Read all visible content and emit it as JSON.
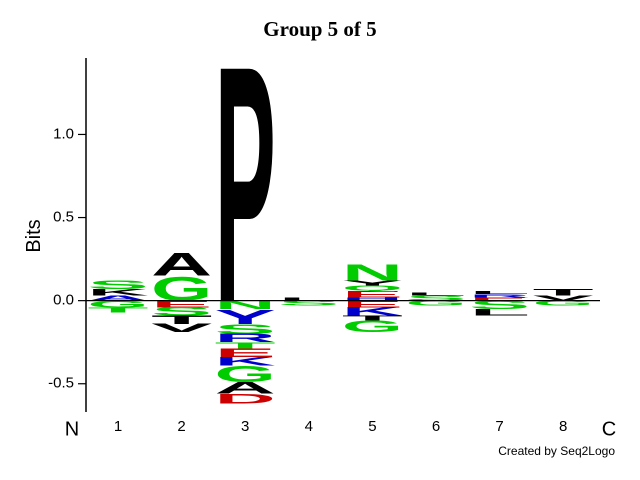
{
  "chart_data": {
    "type": "logo",
    "title": "Group 5 of 5",
    "ylabel": "Bits",
    "categories": [
      "1",
      "2",
      "3",
      "4",
      "5",
      "6",
      "7",
      "8"
    ],
    "start_label": "N",
    "end_label": "C",
    "credit": "Created by Seq2Logo",
    "ylim": [
      -0.67,
      1.46
    ],
    "yticks": [
      {
        "value": -0.5,
        "label": "-0.5"
      },
      {
        "value": 0,
        "label": "0.0"
      },
      {
        "value": 0.5,
        "label": "0.5"
      },
      {
        "value": 1,
        "label": "1.0"
      }
    ],
    "positions": [
      {
        "above": [
          {
            "letter": "A",
            "value": 0.03,
            "color": "#0000cc"
          },
          {
            "letter": "K",
            "value": 0.04,
            "color": "#000000"
          },
          {
            "letter": "S",
            "value": 0.05,
            "color": "#00cc00"
          }
        ],
        "below": [
          {
            "letter": "G",
            "value": -0.04,
            "color": "#00cc00"
          },
          {
            "letter": "T",
            "value": -0.03,
            "color": "#00cc00"
          }
        ]
      },
      {
        "above": [
          {
            "letter": "G",
            "value": 0.15,
            "color": "#00cc00"
          },
          {
            "letter": "A",
            "value": 0.14,
            "color": "#000000"
          }
        ],
        "below": [
          {
            "letter": "E",
            "value": -0.04,
            "color": "#cc0000"
          },
          {
            "letter": "S",
            "value": -0.05,
            "color": "#00cc00"
          },
          {
            "letter": "T",
            "value": -0.05,
            "color": "#000000"
          },
          {
            "letter": "V",
            "value": -0.05,
            "color": "#000000"
          }
        ]
      },
      {
        "above": [
          {
            "letter": "P",
            "value": 1.46,
            "color": "#000000"
          }
        ],
        "below": [
          {
            "letter": "N",
            "value": -0.05,
            "color": "#00cc00"
          },
          {
            "letter": "Y",
            "value": -0.09,
            "color": "#0000cc"
          },
          {
            "letter": "S",
            "value": -0.06,
            "color": "#00cc00"
          },
          {
            "letter": "R",
            "value": -0.05,
            "color": "#0000cc"
          },
          {
            "letter": "T",
            "value": -0.04,
            "color": "#00cc00"
          },
          {
            "letter": "E",
            "value": -0.05,
            "color": "#cc0000"
          },
          {
            "letter": "K",
            "value": -0.05,
            "color": "#0000cc"
          },
          {
            "letter": "G",
            "value": -0.1,
            "color": "#00cc00"
          },
          {
            "letter": "A",
            "value": -0.07,
            "color": "#000000"
          },
          {
            "letter": "D",
            "value": -0.06,
            "color": "#cc0000"
          }
        ]
      },
      {
        "above": [
          {
            "letter": "L",
            "value": 0.02,
            "color": "#000000"
          }
        ],
        "below": [
          {
            "letter": "S",
            "value": -0.03,
            "color": "#00cc00"
          }
        ]
      },
      {
        "above": [
          {
            "letter": "H",
            "value": 0.02,
            "color": "#0000cc"
          },
          {
            "letter": "E",
            "value": 0.04,
            "color": "#cc0000"
          },
          {
            "letter": "Q",
            "value": 0.03,
            "color": "#00cc00"
          },
          {
            "letter": "Y",
            "value": 0.03,
            "color": "#000000"
          },
          {
            "letter": "N",
            "value": 0.1,
            "color": "#00cc00"
          }
        ],
        "below": [
          {
            "letter": "E",
            "value": -0.04,
            "color": "#cc0000"
          },
          {
            "letter": "K",
            "value": -0.05,
            "color": "#0000cc"
          },
          {
            "letter": "T",
            "value": -0.03,
            "color": "#000000"
          },
          {
            "letter": "G",
            "value": -0.07,
            "color": "#00cc00"
          }
        ]
      },
      {
        "above": [
          {
            "letter": "S",
            "value": 0.03,
            "color": "#00cc00"
          },
          {
            "letter": "L",
            "value": 0.02,
            "color": "#000000"
          }
        ],
        "below": [
          {
            "letter": "G",
            "value": -0.03,
            "color": "#00cc00"
          }
        ]
      },
      {
        "above": [
          {
            "letter": "E",
            "value": 0.02,
            "color": "#cc0000"
          },
          {
            "letter": "R",
            "value": 0.02,
            "color": "#0000cc"
          },
          {
            "letter": "L",
            "value": 0.02,
            "color": "#000000"
          }
        ],
        "below": [
          {
            "letter": "S",
            "value": -0.05,
            "color": "#00cc00"
          },
          {
            "letter": "L",
            "value": -0.04,
            "color": "#000000"
          }
        ]
      },
      {
        "above": [
          {
            "letter": "V",
            "value": 0.03,
            "color": "#000000"
          },
          {
            "letter": "T",
            "value": 0.04,
            "color": "#000000"
          }
        ],
        "below": [
          {
            "letter": "G",
            "value": -0.03,
            "color": "#00cc00"
          }
        ]
      }
    ]
  }
}
